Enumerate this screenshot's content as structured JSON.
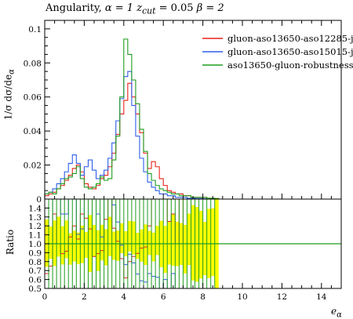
{
  "header": {
    "title_prefix": "Angularity,",
    "title_alpha": "α = 1",
    "title_zcut": "z",
    "title_zcut_sub": "cut",
    "title_zcut_val": "= 0.05",
    "title_beta": "β = 2"
  },
  "axes": {
    "ylabel_main": "1/σ dσ/de",
    "ylabel_main_sub": "α",
    "ylabel_ratio": "Ratio",
    "xlabel": "e",
    "xlabel_sub": "α"
  },
  "chart_data": [
    {
      "type": "line",
      "panel": "main",
      "xlim": [
        0,
        15
      ],
      "ylim": [
        0,
        0.105
      ],
      "x_ticks": [
        "0",
        "2",
        "4",
        "6",
        "8",
        "10",
        "12",
        "14"
      ],
      "y_ticks": [
        "0",
        "0.02",
        "0.04",
        "0.06",
        "0.08",
        "0.1"
      ],
      "bin_width": 0.2,
      "x": [
        0.1,
        0.3,
        0.5,
        0.7,
        0.9,
        1.1,
        1.3,
        1.5,
        1.7,
        1.9,
        2.1,
        2.3,
        2.5,
        2.7,
        2.9,
        3.1,
        3.3,
        3.5,
        3.7,
        3.9,
        4.1,
        4.3,
        4.5,
        4.7,
        4.9,
        5.1,
        5.3,
        5.5,
        5.7,
        5.9,
        6.1,
        6.3,
        6.5,
        6.7,
        6.9,
        7.1,
        7.3,
        7.5,
        7.7,
        7.9,
        8.1,
        8.3,
        8.5,
        8.7
      ],
      "series": [
        {
          "name": "gluon-aso13650-aso12285-j",
          "color": "#e8221b",
          "values": [
            0.002,
            0.003,
            0.004,
            0.006,
            0.008,
            0.011,
            0.014,
            0.018,
            0.02,
            0.016,
            0.009,
            0.007,
            0.006,
            0.008,
            0.012,
            0.014,
            0.019,
            0.027,
            0.038,
            0.05,
            0.058,
            0.068,
            0.06,
            0.05,
            0.039,
            0.027,
            0.018,
            0.022,
            0.019,
            0.012,
            0.008,
            0.005,
            0.004,
            0.003,
            0.003,
            0.002,
            0.002,
            0.001,
            0.001,
            0.001,
            0.001,
            0.0005,
            0.0005,
            0.0003
          ]
        },
        {
          "name": "gluon-aso13650-aso15015-j",
          "color": "#2f5fe8",
          "values": [
            0.003,
            0.004,
            0.006,
            0.009,
            0.012,
            0.016,
            0.021,
            0.026,
            0.021,
            0.014,
            0.019,
            0.023,
            0.017,
            0.012,
            0.014,
            0.017,
            0.024,
            0.033,
            0.046,
            0.059,
            0.072,
            0.075,
            0.055,
            0.037,
            0.024,
            0.016,
            0.01,
            0.007,
            0.005,
            0.003,
            0.003,
            0.002,
            0.002,
            0.001,
            0.001,
            0.001,
            0.0005,
            0.0005,
            0.0003,
            0.0003,
            0.0002,
            0.0002,
            0.0001,
            0.0001
          ]
        },
        {
          "name": "aso13650-gluon-robustness",
          "color": "#1f9d1f",
          "values": [
            0.003,
            0.004,
            0.003,
            0.006,
            0.009,
            0.012,
            0.013,
            0.015,
            0.019,
            0.012,
            0.007,
            0.006,
            0.007,
            0.009,
            0.013,
            0.011,
            0.012,
            0.023,
            0.037,
            0.06,
            0.094,
            0.085,
            0.07,
            0.056,
            0.041,
            0.028,
            0.015,
            0.011,
            0.008,
            0.006,
            0.005,
            0.004,
            0.003,
            0.003,
            0.002,
            0.002,
            0.002,
            0.001,
            0.001,
            0.001,
            0.001,
            0.0005,
            0.0005,
            0.0003
          ]
        }
      ]
    },
    {
      "type": "line",
      "panel": "ratio",
      "ylim": [
        0.5,
        1.5
      ],
      "y_ticks": [
        "0.5",
        "0.6",
        "0.7",
        "0.8",
        "0.9",
        "1.0",
        "1.1",
        "1.2",
        "1.3",
        "1.4"
      ],
      "band_color": "#ffff00",
      "reference_color": "#1f9d1f",
      "reference_value": 1.0
    }
  ]
}
